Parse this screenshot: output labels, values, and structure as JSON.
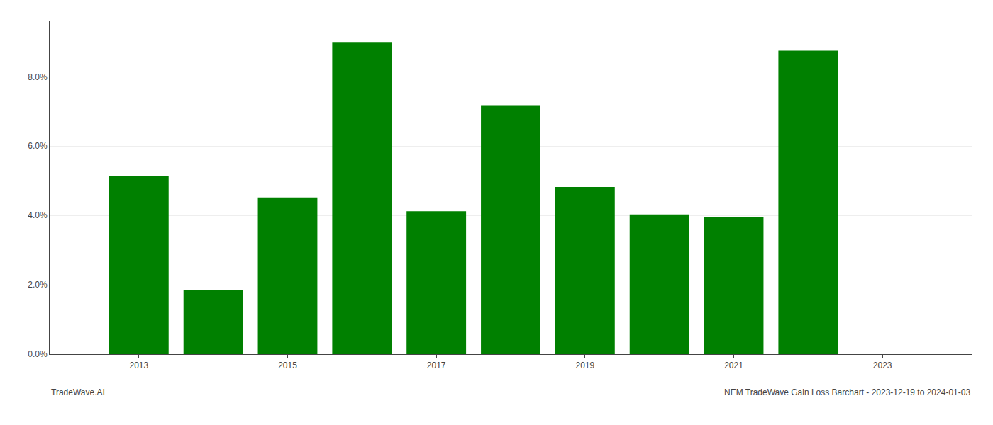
{
  "chart_data": {
    "type": "bar",
    "x": [
      2013,
      2014,
      2015,
      2016,
      2017,
      2018,
      2019,
      2020,
      2021,
      2022
    ],
    "values": [
      0.0513,
      0.0185,
      0.0452,
      0.0898,
      0.0412,
      0.0718,
      0.0482,
      0.0403,
      0.0395,
      0.0875
    ],
    "color": "#008000",
    "xlim": [
      2011.8,
      2024.2
    ],
    "xticks": [
      2013,
      2015,
      2017,
      2019,
      2021,
      2023
    ],
    "ylim": [
      0,
      0.096
    ],
    "yticks": [
      {
        "value": 0.0,
        "label": "0.0%"
      },
      {
        "value": 0.02,
        "label": "2.0%"
      },
      {
        "value": 0.04,
        "label": "4.0%"
      },
      {
        "value": 0.06,
        "label": "6.0%"
      },
      {
        "value": 0.08,
        "label": "8.0%"
      }
    ],
    "grid": true,
    "annotations": [
      "TradeWave.AI",
      "NEM TradeWave Gain Loss Barchart - 2023-12-19 to 2024-01-03"
    ]
  }
}
